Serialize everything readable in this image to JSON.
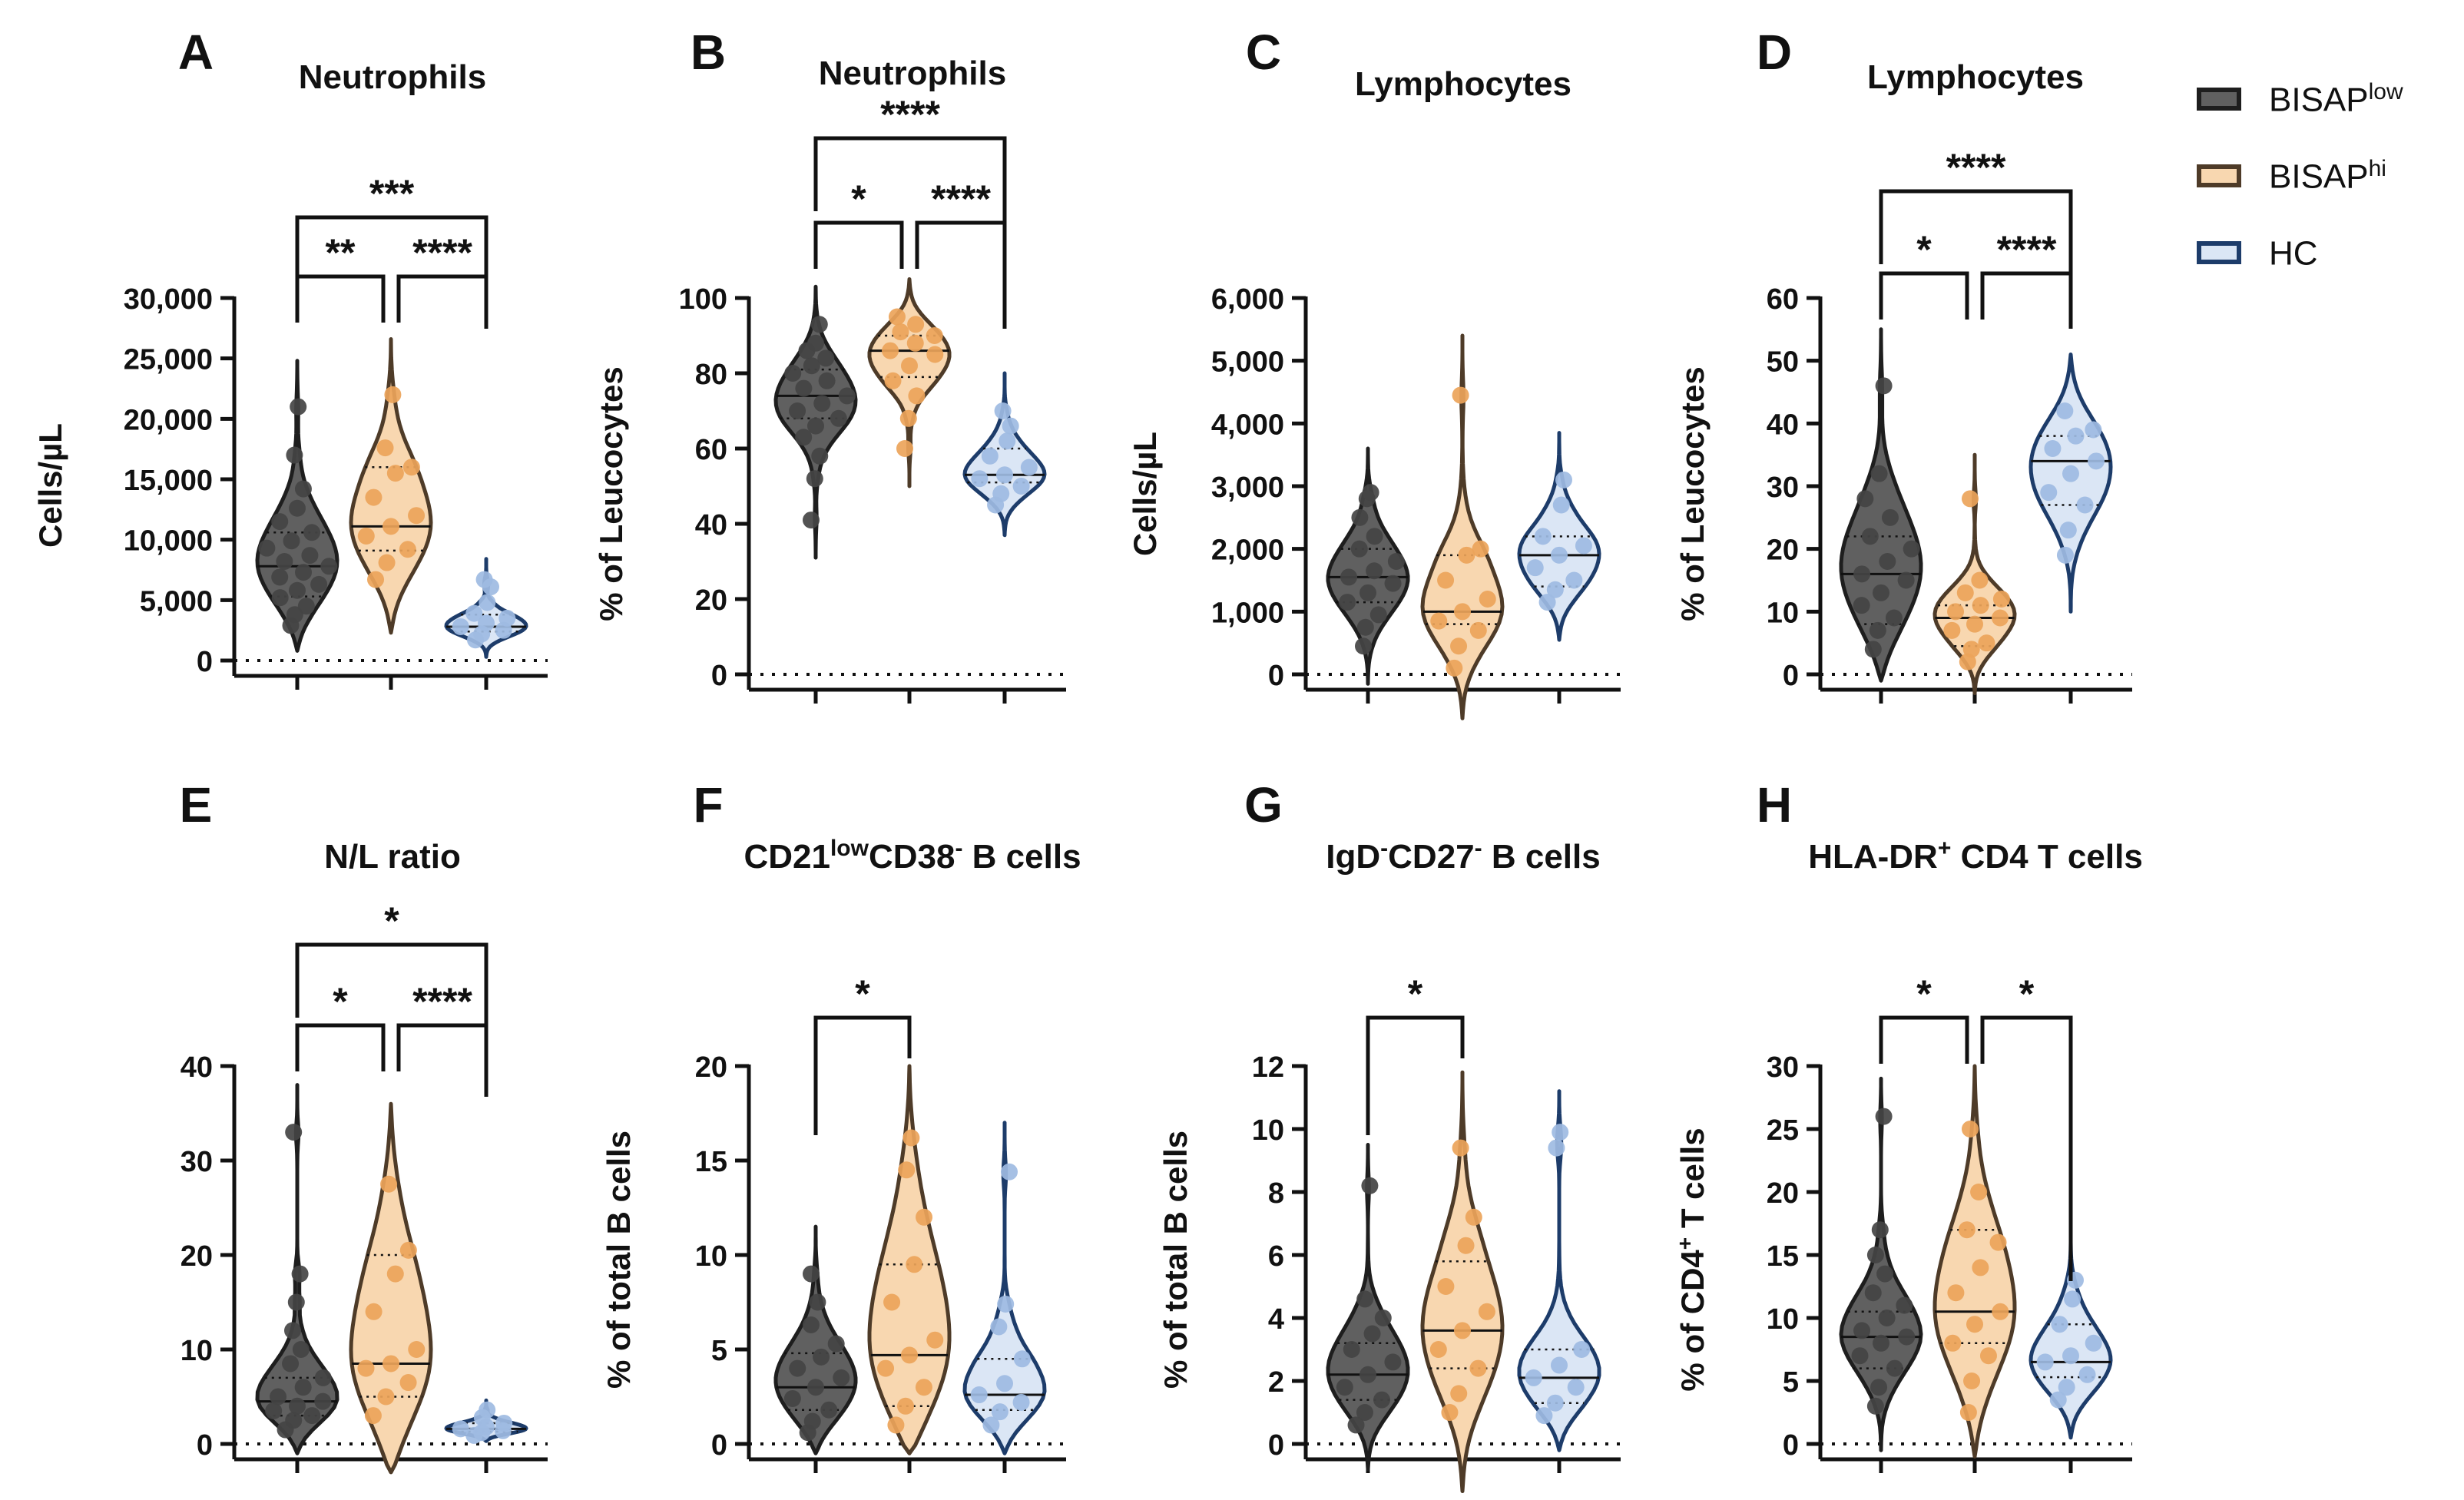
{
  "groups": [
    "BISAPˡᵒʷ",
    "BISAPʰⁱ",
    "HC"
  ],
  "colors": {
    "BISAPlow": {
      "fill": "#606060",
      "stroke": "#1e1e1e",
      "dot": "#444444"
    },
    "BISAPhi": {
      "fill": "#f8d7b0",
      "stroke": "#4e3b28",
      "dot": "#eba45a"
    },
    "HC": {
      "fill": "#dbe6f5",
      "stroke": "#1d3c6a",
      "dot": "#9ebbe2"
    }
  },
  "legend": [
    {
      "base": "BISAP",
      "sup": "low",
      "swatch": "#606060",
      "border": "#1e1e1e"
    },
    {
      "base": "BISAP",
      "sup": "hi",
      "swatch": "#f8d7b0",
      "border": "#4e3b28"
    },
    {
      "base": "HC",
      "sup": "",
      "swatch": "#dbe6f5",
      "border": "#1d3c6a"
    }
  ],
  "chart_data": [
    {
      "panel": "A",
      "type": "violin",
      "title": "Neutrophils",
      "ylabel": "Cells/µL",
      "ylim": [
        0,
        30000
      ],
      "yticks": [
        0,
        5000,
        10000,
        15000,
        20000,
        25000,
        30000
      ],
      "yticklabels": [
        "0",
        "5,000",
        "10,000",
        "15,000",
        "20,000",
        "25,000",
        "30,000"
      ],
      "series": [
        {
          "group": "BISAPlow",
          "median": 7800,
          "q1": 5300,
          "q3": 10600,
          "min": 800,
          "max": 24800,
          "points": [
            2900,
            3800,
            4500,
            5200,
            5800,
            6300,
            6900,
            7300,
            7800,
            8200,
            8700,
            9300,
            9900,
            10600,
            11500,
            12600,
            14200,
            17000,
            21000
          ]
        },
        {
          "group": "BISAPhi",
          "median": 11100,
          "q1": 9100,
          "q3": 16000,
          "min": 2300,
          "max": 26600,
          "points": [
            6700,
            8100,
            9200,
            10300,
            11100,
            12000,
            13500,
            15500,
            16000,
            17600,
            22000
          ]
        },
        {
          "group": "HC",
          "median": 2800,
          "q1": 2400,
          "q3": 3800,
          "min": 300,
          "max": 8400,
          "points": [
            1700,
            2200,
            2500,
            2800,
            3100,
            3500,
            3900,
            4800,
            6100,
            6700
          ]
        }
      ],
      "significance": [
        {
          "from": 0,
          "to": 2,
          "label": "***"
        },
        {
          "from": 0,
          "to": 1,
          "label": "**"
        },
        {
          "from": 1,
          "to": 2,
          "label": "****"
        }
      ]
    },
    {
      "panel": "B",
      "type": "violin",
      "title": "Neutrophils",
      "ylabel": "% of Leucocytes",
      "ylim": [
        0,
        100
      ],
      "yticks": [
        0,
        20,
        40,
        60,
        80,
        100
      ],
      "yticklabels": [
        "0",
        "20",
        "40",
        "60",
        "80",
        "100"
      ],
      "series": [
        {
          "group": "BISAPlow",
          "median": 74,
          "q1": 68,
          "q3": 81,
          "min": 31,
          "max": 103,
          "points": [
            41,
            52,
            58,
            63,
            66,
            68,
            70,
            72,
            74,
            76,
            78,
            80,
            82,
            84,
            86,
            88,
            93
          ]
        },
        {
          "group": "BISAPhi",
          "median": 86,
          "q1": 79,
          "q3": 90,
          "min": 50,
          "max": 105,
          "points": [
            60,
            68,
            74,
            78,
            82,
            85,
            86,
            88,
            90,
            91,
            93,
            95
          ]
        },
        {
          "group": "HC",
          "median": 53,
          "q1": 51,
          "q3": 60,
          "min": 37,
          "max": 80,
          "points": [
            45,
            48,
            50,
            52,
            53,
            55,
            58,
            62,
            66,
            70
          ]
        }
      ],
      "significance": [
        {
          "from": 0,
          "to": 2,
          "label": "****"
        },
        {
          "from": 0,
          "to": 1,
          "label": "*"
        },
        {
          "from": 1,
          "to": 2,
          "label": "****"
        }
      ]
    },
    {
      "panel": "C",
      "type": "violin",
      "title": "Lymphocytes",
      "ylabel": "Cells/µL",
      "ylim": [
        0,
        6000
      ],
      "yticks": [
        0,
        1000,
        2000,
        3000,
        4000,
        5000,
        6000
      ],
      "yticklabels": [
        "0",
        "1,000",
        "2,000",
        "3,000",
        "4,000",
        "5,000",
        "6,000"
      ],
      "series": [
        {
          "group": "BISAPlow",
          "median": 1550,
          "q1": 1150,
          "q3": 2000,
          "min": -150,
          "max": 3600,
          "points": [
            450,
            750,
            950,
            1150,
            1300,
            1450,
            1550,
            1650,
            1800,
            2000,
            2200,
            2500,
            2800,
            2900
          ]
        },
        {
          "group": "BISAPhi",
          "median": 1000,
          "q1": 800,
          "q3": 1900,
          "min": -700,
          "max": 5400,
          "points": [
            100,
            450,
            700,
            850,
            1000,
            1200,
            1500,
            1900,
            2000,
            4450
          ]
        },
        {
          "group": "HC",
          "median": 1900,
          "q1": 1400,
          "q3": 2200,
          "min": 550,
          "max": 3850,
          "points": [
            1150,
            1350,
            1500,
            1700,
            1900,
            2050,
            2200,
            2700,
            3100
          ]
        }
      ],
      "significance": []
    },
    {
      "panel": "D",
      "type": "violin",
      "title": "Lymphocytes",
      "ylabel": "% of Leucocytes",
      "ylim": [
        0,
        60
      ],
      "yticks": [
        0,
        10,
        20,
        30,
        40,
        50,
        60
      ],
      "yticklabels": [
        "0",
        "10",
        "20",
        "30",
        "40",
        "50",
        "60"
      ],
      "series": [
        {
          "group": "BISAPlow",
          "median": 16,
          "q1": 8,
          "q3": 22,
          "min": -1,
          "max": 55,
          "points": [
            4,
            7,
            9,
            11,
            13,
            15,
            16,
            18,
            20,
            22,
            25,
            28,
            32,
            46
          ]
        },
        {
          "group": "BISAPhi",
          "median": 9,
          "q1": 4.5,
          "q3": 11,
          "min": -3,
          "max": 35,
          "points": [
            2,
            4,
            5,
            7,
            8,
            9,
            10,
            11,
            12,
            13,
            15,
            28
          ]
        },
        {
          "group": "HC",
          "median": 34,
          "q1": 27,
          "q3": 38,
          "min": 10,
          "max": 51,
          "points": [
            19,
            23,
            27,
            29,
            32,
            34,
            36,
            38,
            39,
            42
          ]
        }
      ],
      "significance": [
        {
          "from": 0,
          "to": 2,
          "label": "****"
        },
        {
          "from": 0,
          "to": 1,
          "label": "*"
        },
        {
          "from": 1,
          "to": 2,
          "label": "****"
        }
      ]
    },
    {
      "panel": "E",
      "type": "violin",
      "title": "N/L ratio",
      "ylabel": "",
      "ylim": [
        0,
        40
      ],
      "yticks": [
        0,
        10,
        20,
        30,
        40
      ],
      "yticklabels": [
        "0",
        "10",
        "20",
        "30",
        "40"
      ],
      "series": [
        {
          "group": "BISAPlow",
          "median": 4.5,
          "q1": 3,
          "q3": 7,
          "min": -1,
          "max": 38,
          "points": [
            1.5,
            2.5,
            3,
            3.5,
            4,
            4.5,
            5,
            6,
            7,
            8.5,
            10,
            12,
            15,
            18,
            33
          ]
        },
        {
          "group": "BISAPhi",
          "median": 8.5,
          "q1": 5,
          "q3": 20,
          "min": -3,
          "max": 36,
          "points": [
            3,
            5,
            6.5,
            8,
            8.5,
            10,
            14,
            18,
            20.5,
            27.5
          ]
        },
        {
          "group": "HC",
          "median": 1.6,
          "q1": 1.3,
          "q3": 2.2,
          "min": 0.3,
          "max": 4.6,
          "points": [
            0.9,
            1.2,
            1.4,
            1.6,
            1.8,
            2.2,
            2.8,
            3.6
          ]
        }
      ],
      "significance": [
        {
          "from": 0,
          "to": 2,
          "label": "*"
        },
        {
          "from": 0,
          "to": 1,
          "label": "*"
        },
        {
          "from": 1,
          "to": 2,
          "label": "****"
        }
      ]
    },
    {
      "panel": "F",
      "type": "violin",
      "title": "CD21lowCD38- B cells",
      "title_parts": {
        "a": "CD21",
        "a_sup": "low",
        "b": "CD38",
        "b_sup": "-",
        "c": " B cells"
      },
      "ylabel": "% of total B cells",
      "ylim": [
        0,
        20
      ],
      "yticks": [
        0,
        5,
        10,
        15,
        20
      ],
      "yticklabels": [
        "0",
        "5",
        "10",
        "15",
        "20"
      ],
      "series": [
        {
          "group": "BISAPlow",
          "median": 3,
          "q1": 1.8,
          "q3": 4.8,
          "min": -0.5,
          "max": 11.5,
          "points": [
            0.6,
            1.2,
            1.8,
            2.4,
            3,
            3.5,
            4,
            4.6,
            5.3,
            6.3,
            7.5,
            9
          ]
        },
        {
          "group": "BISAPhi",
          "median": 4.7,
          "q1": 2,
          "q3": 9.5,
          "min": -0.5,
          "max": 20,
          "points": [
            1,
            2,
            3,
            4,
            4.7,
            5.5,
            7.5,
            9.5,
            12,
            14.5,
            16.2
          ]
        },
        {
          "group": "HC",
          "median": 2.6,
          "q1": 1.8,
          "q3": 4.5,
          "min": -0.5,
          "max": 17,
          "points": [
            1,
            1.7,
            2.2,
            2.6,
            3.2,
            4.5,
            6.2,
            7.4,
            14.4
          ]
        }
      ],
      "significance": [
        {
          "from": 0,
          "to": 1,
          "label": "*"
        }
      ]
    },
    {
      "panel": "G",
      "type": "violin",
      "title": "IgD-CD27- B cells",
      "title_parts": {
        "a": "IgD",
        "a_sup": "-",
        "b": "CD27",
        "b_sup": "-",
        "c": " B cells"
      },
      "ylabel": "% of total B cells",
      "ylim": [
        0,
        12
      ],
      "yticks": [
        0,
        2,
        4,
        6,
        8,
        10,
        12
      ],
      "yticklabels": [
        "0",
        "2",
        "4",
        "6",
        "8",
        "10",
        "12"
      ],
      "series": [
        {
          "group": "BISAPlow",
          "median": 2.2,
          "q1": 1.4,
          "q3": 3.2,
          "min": -0.8,
          "max": 9.5,
          "points": [
            0.6,
            1,
            1.4,
            1.8,
            2.2,
            2.6,
            3,
            3.5,
            4,
            4.6,
            8.2
          ]
        },
        {
          "group": "BISAPhi",
          "median": 3.6,
          "q1": 2.4,
          "q3": 5.8,
          "min": -1.5,
          "max": 11.8,
          "points": [
            1,
            1.6,
            2.4,
            3,
            3.6,
            4.2,
            5,
            6.3,
            7.2,
            9.4
          ]
        },
        {
          "group": "HC",
          "median": 2.1,
          "q1": 1.3,
          "q3": 3,
          "min": -0.2,
          "max": 11.2,
          "points": [
            0.9,
            1.3,
            1.8,
            2.1,
            2.5,
            3,
            9.4,
            9.9
          ]
        }
      ],
      "significance": [
        {
          "from": 0,
          "to": 1,
          "label": "*"
        }
      ]
    },
    {
      "panel": "H",
      "type": "violin",
      "title": "HLA-DR+ CD4 T cells",
      "title_parts": {
        "a": "HLA-DR",
        "a_sup": "+",
        "b": " CD4 T cells",
        "b_sup": "",
        "c": ""
      },
      "ylabel": "% of CD4+ T cells",
      "ylim": [
        0,
        30
      ],
      "yticks": [
        0,
        5,
        10,
        15,
        20,
        25,
        30
      ],
      "yticklabels": [
        "0",
        "5",
        "10",
        "15",
        "20",
        "25",
        "30"
      ],
      "series": [
        {
          "group": "BISAPlow",
          "median": 8.5,
          "q1": 6,
          "q3": 10.5,
          "min": -0.5,
          "max": 29,
          "points": [
            3,
            4.5,
            6,
            7,
            8,
            8.5,
            9,
            10,
            11,
            12,
            13.5,
            15,
            17,
            26
          ]
        },
        {
          "group": "BISAPhi",
          "median": 10.5,
          "q1": 8,
          "q3": 17,
          "min": -1,
          "max": 30,
          "points": [
            2.5,
            5,
            7,
            8,
            9.5,
            10.5,
            12,
            14,
            16,
            17,
            20,
            25
          ]
        },
        {
          "group": "HC",
          "median": 6.5,
          "q1": 5.3,
          "q3": 9.5,
          "min": 0.5,
          "max": 16,
          "points": [
            3.5,
            4.5,
            5.5,
            6.5,
            7,
            8,
            9.5,
            11.5,
            13
          ]
        }
      ],
      "significance": [
        {
          "from": 0,
          "to": 1,
          "label": "*"
        },
        {
          "from": 1,
          "to": 2,
          "label": "*"
        }
      ]
    }
  ],
  "ylabel_parts": {
    "H": {
      "a": "% of CD4",
      "sup": "+",
      "b": " T cells"
    }
  }
}
